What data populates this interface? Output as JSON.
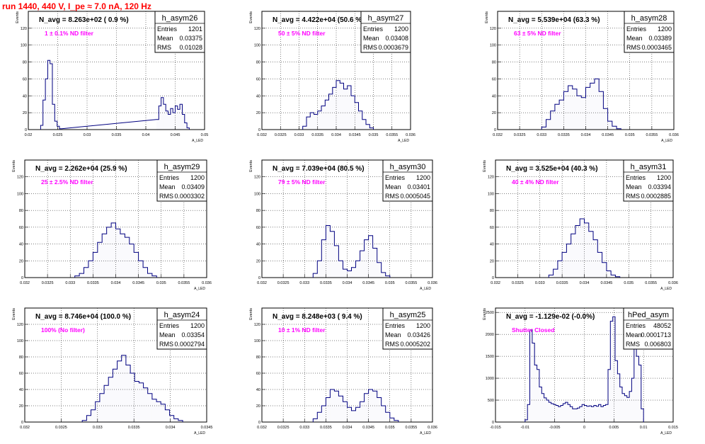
{
  "title": "run 1440,   440 V, I_pe ≈ 7.0 nA, 120 Hz",
  "colors": {
    "title": "#ff0000",
    "hist": "#000080",
    "label": "#ff00ff",
    "grid": "#000000"
  },
  "chart_data": [
    {
      "type": "bar",
      "hist": "h_asym26",
      "navg": "N_avg = 8.263e+02 ( 0.9 %)",
      "label": "1 ± 0.1% ND filter",
      "stats": {
        "Entries": "1201",
        "Mean": "0.03375",
        "RMS": "0.01028"
      },
      "xlim": [
        0.02,
        0.05
      ],
      "ylim": [
        0,
        140
      ],
      "xticks": [
        "0.02",
        "0.025",
        "0.03",
        "0.035",
        "0.04",
        "0.045",
        "0.05"
      ],
      "yticks": [
        "0",
        "20",
        "40",
        "60",
        "80",
        "100",
        "120"
      ],
      "xlabel": "A_LED",
      "ylabel": "Events",
      "x": [
        0.0223,
        0.0227,
        0.0231,
        0.0235,
        0.0239,
        0.0243,
        0.0247,
        0.0251,
        0.0255,
        0.042,
        0.0424,
        0.0428,
        0.0432,
        0.0436,
        0.044,
        0.0444,
        0.0448,
        0.0452,
        0.0456,
        0.046,
        0.0464,
        0.0468,
        0.0472
      ],
      "values": [
        5,
        35,
        60,
        82,
        78,
        30,
        10,
        4,
        1,
        12,
        28,
        38,
        30,
        22,
        18,
        25,
        20,
        28,
        24,
        30,
        18,
        8,
        2
      ]
    },
    {
      "type": "bar",
      "hist": "h_asym27",
      "navg": "N_avg = 4.422e+04 (50.6 %)",
      "label": "50 ± 5% ND filter",
      "stats": {
        "Entries": "1200",
        "Mean": "0.03408",
        "RMS": "0.0003679"
      },
      "xlim": [
        0.032,
        0.036
      ],
      "ylim": [
        0,
        140
      ],
      "xticks": [
        "0.032",
        "0.0325",
        "0.033",
        "0.0335",
        "0.034",
        "0.0345",
        "0.035",
        "0.0355",
        "0.036"
      ],
      "yticks": [
        "0",
        "20",
        "40",
        "60",
        "80",
        "100",
        "120"
      ],
      "xlabel": "A_LED",
      "ylabel": "Events",
      "x": [
        0.03315,
        0.03325,
        0.03335,
        0.03345,
        0.03355,
        0.03365,
        0.03375,
        0.03385,
        0.03395,
        0.03405,
        0.03415,
        0.03425,
        0.03435,
        0.03445,
        0.03455,
        0.03465,
        0.03475,
        0.03485,
        0.03495
      ],
      "values": [
        4,
        15,
        20,
        18,
        22,
        28,
        35,
        42,
        50,
        58,
        55,
        48,
        52,
        40,
        32,
        22,
        12,
        6,
        2
      ]
    },
    {
      "type": "bar",
      "hist": "h_asym28",
      "navg": "N_avg = 5.539e+04 (63.3 %)",
      "label": "63 ± 5% ND filter",
      "stats": {
        "Entries": "1200",
        "Mean": "0.03389",
        "RMS": "0.0003465"
      },
      "xlim": [
        0.032,
        0.036
      ],
      "ylim": [
        0,
        140
      ],
      "xticks": [
        "0.032",
        "0.0325",
        "0.033",
        "0.0335",
        "0.034",
        "0.0345",
        "0.035",
        "0.0355",
        "0.036"
      ],
      "yticks": [
        "0",
        "20",
        "40",
        "60",
        "80",
        "100",
        "120"
      ],
      "xlabel": "A_LED",
      "ylabel": "Events",
      "x": [
        0.03305,
        0.03315,
        0.03325,
        0.03335,
        0.03345,
        0.03355,
        0.03365,
        0.03375,
        0.03385,
        0.03395,
        0.03405,
        0.03415,
        0.03425,
        0.03435,
        0.03445,
        0.03455,
        0.03465,
        0.03475
      ],
      "values": [
        3,
        12,
        22,
        30,
        35,
        45,
        52,
        48,
        40,
        38,
        50,
        55,
        60,
        45,
        25,
        10,
        4,
        1
      ]
    },
    {
      "type": "bar",
      "hist": "h_asym29",
      "navg": "N_avg = 2.262e+04 (25.9 %)",
      "label": "25 ± 2.5% ND filter",
      "stats": {
        "Entries": "1200",
        "Mean": "0.03409",
        "RMS": "0.0003302"
      },
      "xlim": [
        0.032,
        0.036
      ],
      "ylim": [
        0,
        140
      ],
      "xticks": [
        "0.032",
        "0.0325",
        "0.033",
        "0.0335",
        "0.034",
        "0.0345",
        "0.035",
        "0.0355",
        "0.036"
      ],
      "yticks": [
        "0",
        "20",
        "40",
        "60",
        "80",
        "100",
        "120"
      ],
      "xlabel": "A_LED",
      "ylabel": "Events",
      "x": [
        0.03315,
        0.03325,
        0.03335,
        0.03345,
        0.03355,
        0.03365,
        0.03375,
        0.03385,
        0.03395,
        0.03405,
        0.03415,
        0.03425,
        0.03435,
        0.03445,
        0.03455,
        0.03465,
        0.03475,
        0.03485
      ],
      "values": [
        2,
        5,
        12,
        20,
        30,
        42,
        52,
        60,
        65,
        58,
        52,
        48,
        40,
        30,
        20,
        12,
        5,
        2
      ]
    },
    {
      "type": "bar",
      "hist": "h_asym30",
      "navg": "N_avg = 7.039e+04 (80.5 %)",
      "label": "79 ± 5% ND filter",
      "stats": {
        "Entries": "1200",
        "Mean": "0.03401",
        "RMS": "0.0005045"
      },
      "xlim": [
        0.032,
        0.036
      ],
      "ylim": [
        0,
        140
      ],
      "xticks": [
        "0.032",
        "0.0325",
        "0.033",
        "0.0335",
        "0.034",
        "0.0345",
        "0.035",
        "0.0355",
        "0.036"
      ],
      "yticks": [
        "0",
        "20",
        "40",
        "60",
        "80",
        "100",
        "120"
      ],
      "xlabel": "A_LED",
      "ylabel": "Events",
      "x": [
        0.03325,
        0.03335,
        0.03345,
        0.03355,
        0.03365,
        0.03375,
        0.03385,
        0.03395,
        0.03405,
        0.03415,
        0.03425,
        0.03435,
        0.03445,
        0.03455,
        0.03465,
        0.03475,
        0.03485,
        0.03495
      ],
      "values": [
        5,
        20,
        45,
        62,
        55,
        38,
        20,
        10,
        8,
        12,
        20,
        32,
        45,
        50,
        35,
        18,
        6,
        2
      ]
    },
    {
      "type": "bar",
      "hist": "h_asym31",
      "navg": "N_avg = 3.525e+04 (40.3 %)",
      "label": "40 ± 4% ND filter",
      "stats": {
        "Entries": "1200",
        "Mean": "0.03394",
        "RMS": "0.0002885"
      },
      "xlim": [
        0.032,
        0.036
      ],
      "ylim": [
        0,
        140
      ],
      "xticks": [
        "0.032",
        "0.0325",
        "0.033",
        "0.0335",
        "0.034",
        "0.0345",
        "0.035",
        "0.0355",
        "0.036"
      ],
      "yticks": [
        "0",
        "20",
        "40",
        "60",
        "80",
        "100",
        "120"
      ],
      "xlabel": "A_LED",
      "ylabel": "Events",
      "x": [
        0.03325,
        0.03335,
        0.03345,
        0.03355,
        0.03365,
        0.03375,
        0.03385,
        0.03395,
        0.03405,
        0.03415,
        0.03425,
        0.03435,
        0.03445,
        0.03455,
        0.03465,
        0.03475
      ],
      "values": [
        3,
        10,
        20,
        30,
        40,
        52,
        62,
        70,
        65,
        55,
        45,
        30,
        18,
        8,
        3,
        1
      ]
    },
    {
      "type": "bar",
      "hist": "h_asym24",
      "navg": "N_avg = 8.746e+04 (100.0 %)",
      "label": "100% (No filter)",
      "stats": {
        "Entries": "1200",
        "Mean": "0.03354",
        "RMS": "0.0002794"
      },
      "xlim": [
        0.032,
        0.0345
      ],
      "ylim": [
        0,
        140
      ],
      "xticks": [
        "0.032",
        "0.0325",
        "0.033",
        "0.0335",
        "0.034",
        "0.0345"
      ],
      "yticks": [
        "0",
        "20",
        "40",
        "60",
        "80",
        "100",
        "120"
      ],
      "xlabel": "A_LED",
      "ylabel": "Events",
      "x": [
        0.03282,
        0.03288,
        0.03294,
        0.033,
        0.03306,
        0.03312,
        0.03318,
        0.03324,
        0.0333,
        0.03336,
        0.03342,
        0.03348,
        0.03354,
        0.0336,
        0.03366,
        0.03372,
        0.03378,
        0.03384,
        0.0339,
        0.03396,
        0.03402,
        0.03408,
        0.03414
      ],
      "values": [
        2,
        8,
        15,
        25,
        35,
        45,
        55,
        65,
        75,
        82,
        70,
        60,
        50,
        48,
        42,
        35,
        28,
        25,
        22,
        15,
        8,
        4,
        2
      ]
    },
    {
      "type": "bar",
      "hist": "h_asym25",
      "navg": "N_avg = 8.248e+03 ( 9.4 %)",
      "label": "10 ± 1% ND filter",
      "stats": {
        "Entries": "1200",
        "Mean": "0.03426",
        "RMS": "0.0005202"
      },
      "xlim": [
        0.032,
        0.036
      ],
      "ylim": [
        0,
        140
      ],
      "xticks": [
        "0.032",
        "0.0325",
        "0.033",
        "0.0335",
        "0.034",
        "0.0345",
        "0.035",
        "0.0355",
        "0.036"
      ],
      "yticks": [
        "0",
        "20",
        "40",
        "60",
        "80",
        "100",
        "120"
      ],
      "xlabel": "A_LED",
      "ylabel": "Events",
      "x": [
        0.03325,
        0.03335,
        0.03345,
        0.03355,
        0.03365,
        0.03375,
        0.03385,
        0.03395,
        0.03405,
        0.03415,
        0.03425,
        0.03435,
        0.03445,
        0.03455,
        0.03465,
        0.03475,
        0.03485,
        0.03495,
        0.03505,
        0.03515
      ],
      "values": [
        4,
        12,
        20,
        30,
        40,
        38,
        32,
        25,
        18,
        14,
        18,
        25,
        35,
        40,
        38,
        30,
        20,
        12,
        5,
        2
      ]
    },
    {
      "type": "bar",
      "hist": "hPed_asym",
      "navg": "N_avg = -1.129e-02 (-0.0%)",
      "label": "Shutter Closed",
      "stats": {
        "Entries": "48052",
        "Mean": "0.0001713",
        "RMS": "0.006803"
      },
      "xlim": [
        -0.015,
        0.015
      ],
      "ylim": [
        0,
        2600
      ],
      "xticks": [
        "-0.015",
        "-0.01",
        "-0.005",
        "0",
        "0.005",
        "0.01",
        "0.015"
      ],
      "yticks": [
        "0",
        "500",
        "1000",
        "1500",
        "2000",
        "2500"
      ],
      "xlabel": "A_LED",
      "ylabel": "Events",
      "x": [
        -0.0098,
        -0.0094,
        -0.009,
        -0.0086,
        -0.0082,
        -0.0078,
        -0.0074,
        -0.007,
        -0.0066,
        -0.0062,
        -0.0058,
        -0.0054,
        -0.005,
        -0.0046,
        -0.0042,
        -0.0038,
        -0.0034,
        -0.003,
        -0.0026,
        -0.0022,
        -0.0018,
        -0.0014,
        -0.001,
        -0.0006,
        -0.0002,
        0.0002,
        0.0006,
        0.001,
        0.0014,
        0.0018,
        0.0022,
        0.0026,
        0.003,
        0.0034,
        0.0038,
        0.0042,
        0.0046,
        0.005,
        0.0054,
        0.0058,
        0.0062,
        0.0066,
        0.007,
        0.0074,
        0.0078,
        0.0082,
        0.0086,
        0.009,
        0.0094,
        0.0098
      ],
      "values": [
        50,
        400,
        2100,
        1800,
        1300,
        1200,
        800,
        650,
        550,
        500,
        450,
        420,
        400,
        380,
        350,
        380,
        420,
        450,
        400,
        350,
        300,
        300,
        320,
        350,
        400,
        380,
        360,
        370,
        350,
        380,
        360,
        400,
        350,
        380,
        400,
        1200,
        2300,
        2400,
        1400,
        1100,
        800,
        650,
        600,
        560,
        700,
        1000,
        1800,
        1500,
        1300,
        300
      ]
    }
  ]
}
